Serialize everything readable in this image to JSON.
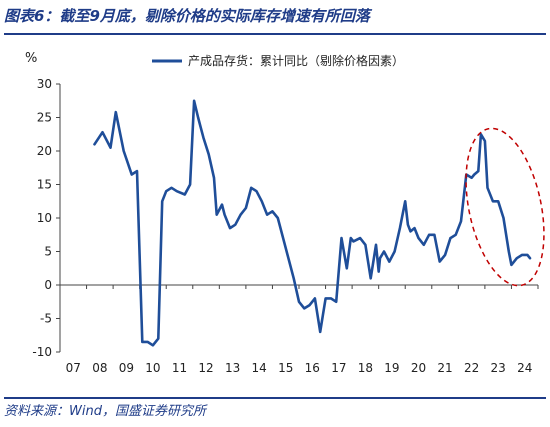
{
  "title": "图表6：截至9月底，剔除价格的实际库存增速有所回落",
  "source": "资料来源：Wind，国盛证券研究所",
  "colors": {
    "line": "#1f4e99",
    "accent": "#1f3c88",
    "annotation": "#c00000"
  },
  "chart_data": {
    "type": "line",
    "unit_label": "%",
    "ylim": [
      -10,
      30
    ],
    "yticks": [
      -10,
      -5,
      0,
      5,
      10,
      15,
      20,
      25,
      30
    ],
    "xlim": [
      2007,
      2025
    ],
    "xtick_labels": [
      "07",
      "08",
      "09",
      "10",
      "11",
      "12",
      "13",
      "14",
      "15",
      "16",
      "17",
      "18",
      "19",
      "20",
      "21",
      "22",
      "23",
      "24"
    ],
    "grid": false,
    "legend": {
      "position": "top-center"
    },
    "annotation": "dashed red ellipse around 2023–2024 decline",
    "series": [
      {
        "name": "产成品存货：累计同比（剔除价格因素）",
        "x": [
          2008.3,
          2008.6,
          2008.9,
          2009.1,
          2009.4,
          2009.7,
          2009.9,
          2010.1,
          2010.15,
          2010.3,
          2010.5,
          2010.7,
          2010.85,
          2011.0,
          2011.2,
          2011.4,
          2011.7,
          2011.9,
          2012.05,
          2012.2,
          2012.4,
          2012.6,
          2012.8,
          2012.9,
          2013.1,
          2013.2,
          2013.4,
          2013.6,
          2013.8,
          2014.0,
          2014.2,
          2014.4,
          2014.6,
          2014.8,
          2015.0,
          2015.2,
          2015.4,
          2015.6,
          2015.8,
          2016.0,
          2016.2,
          2016.4,
          2016.6,
          2016.8,
          2016.9,
          2017.0,
          2017.2,
          2017.4,
          2017.6,
          2017.8,
          2017.95,
          2018.05,
          2018.3,
          2018.5,
          2018.7,
          2018.9,
          2019.0,
          2019.05,
          2019.2,
          2019.4,
          2019.6,
          2019.8,
          2020.0,
          2020.1,
          2020.2,
          2020.35,
          2020.5,
          2020.7,
          2020.9,
          2021.1,
          2021.3,
          2021.5,
          2021.7,
          2021.9,
          2022.1,
          2022.3,
          2022.5,
          2022.6,
          2022.75,
          2022.85,
          2023.0,
          2023.1,
          2023.3,
          2023.5,
          2023.7,
          2023.9,
          2024.0,
          2024.2,
          2024.4,
          2024.6,
          2024.7
        ],
        "values": [
          21,
          22.8,
          20.5,
          25.8,
          20,
          16.5,
          17,
          -8.5,
          -8.5,
          -8.5,
          -9,
          -8,
          12.5,
          14,
          14.5,
          14,
          13.5,
          15,
          27.5,
          25,
          22,
          19.5,
          16,
          10.5,
          12,
          10.5,
          8.5,
          9,
          10.5,
          11.5,
          14.5,
          14,
          12.5,
          10.5,
          11,
          10,
          7,
          4,
          1,
          -2.5,
          -3.5,
          -3,
          -2,
          -7,
          -4.5,
          -2,
          -2,
          -2.5,
          7,
          2.5,
          7,
          6.5,
          7,
          6,
          1,
          6,
          2,
          4,
          5,
          3.5,
          5,
          8.5,
          12.5,
          9,
          8,
          8.5,
          7,
          6,
          7.5,
          7.5,
          3.5,
          4.5,
          7,
          7.5,
          9.5,
          16.5,
          16,
          16.5,
          17,
          22.5,
          21.5,
          14.5,
          12.5,
          12.5,
          10,
          5,
          3,
          4,
          4.5,
          4.5,
          4
        ]
      }
    ]
  }
}
